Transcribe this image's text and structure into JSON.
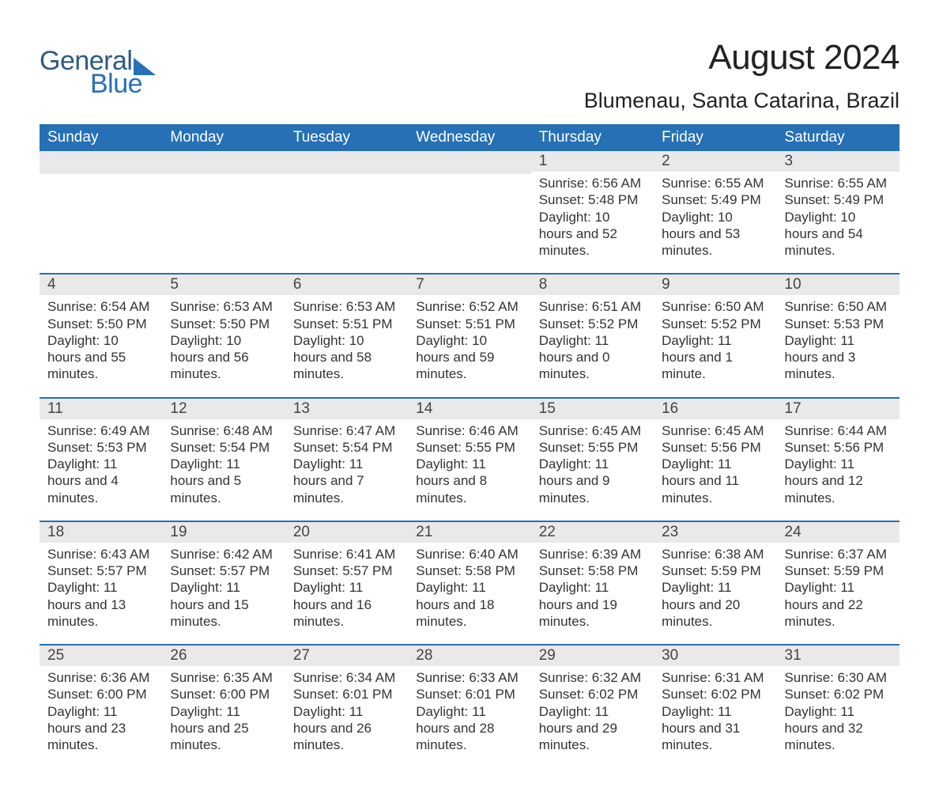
{
  "logo": {
    "text_general": "General",
    "text_blue": "Blue",
    "brand_color_dark": "#2e5a82",
    "brand_color_light": "#2670b6"
  },
  "title": "August 2024",
  "location": "Blumenau, Santa Catarina, Brazil",
  "colors": {
    "header_bg": "#2670b6",
    "header_text": "#ffffff",
    "daynum_bg": "#e9e9e9",
    "text": "#333333",
    "page_bg": "#ffffff",
    "divider": "#2670b6"
  },
  "fonts": {
    "title_size_pt": 33,
    "subtitle_size_pt": 20,
    "header_size_pt": 14,
    "body_size_pt": 13
  },
  "day_names": [
    "Sunday",
    "Monday",
    "Tuesday",
    "Wednesday",
    "Thursday",
    "Friday",
    "Saturday"
  ],
  "labels": {
    "sunrise": "Sunrise",
    "sunset": "Sunset",
    "daylight": "Daylight"
  },
  "weeks": [
    [
      null,
      null,
      null,
      null,
      {
        "day": "1",
        "sunrise": "6:56 AM",
        "sunset": "5:48 PM",
        "daylight": "10 hours and 52 minutes."
      },
      {
        "day": "2",
        "sunrise": "6:55 AM",
        "sunset": "5:49 PM",
        "daylight": "10 hours and 53 minutes."
      },
      {
        "day": "3",
        "sunrise": "6:55 AM",
        "sunset": "5:49 PM",
        "daylight": "10 hours and 54 minutes."
      }
    ],
    [
      {
        "day": "4",
        "sunrise": "6:54 AM",
        "sunset": "5:50 PM",
        "daylight": "10 hours and 55 minutes."
      },
      {
        "day": "5",
        "sunrise": "6:53 AM",
        "sunset": "5:50 PM",
        "daylight": "10 hours and 56 minutes."
      },
      {
        "day": "6",
        "sunrise": "6:53 AM",
        "sunset": "5:51 PM",
        "daylight": "10 hours and 58 minutes."
      },
      {
        "day": "7",
        "sunrise": "6:52 AM",
        "sunset": "5:51 PM",
        "daylight": "10 hours and 59 minutes."
      },
      {
        "day": "8",
        "sunrise": "6:51 AM",
        "sunset": "5:52 PM",
        "daylight": "11 hours and 0 minutes."
      },
      {
        "day": "9",
        "sunrise": "6:50 AM",
        "sunset": "5:52 PM",
        "daylight": "11 hours and 1 minute."
      },
      {
        "day": "10",
        "sunrise": "6:50 AM",
        "sunset": "5:53 PM",
        "daylight": "11 hours and 3 minutes."
      }
    ],
    [
      {
        "day": "11",
        "sunrise": "6:49 AM",
        "sunset": "5:53 PM",
        "daylight": "11 hours and 4 minutes."
      },
      {
        "day": "12",
        "sunrise": "6:48 AM",
        "sunset": "5:54 PM",
        "daylight": "11 hours and 5 minutes."
      },
      {
        "day": "13",
        "sunrise": "6:47 AM",
        "sunset": "5:54 PM",
        "daylight": "11 hours and 7 minutes."
      },
      {
        "day": "14",
        "sunrise": "6:46 AM",
        "sunset": "5:55 PM",
        "daylight": "11 hours and 8 minutes."
      },
      {
        "day": "15",
        "sunrise": "6:45 AM",
        "sunset": "5:55 PM",
        "daylight": "11 hours and 9 minutes."
      },
      {
        "day": "16",
        "sunrise": "6:45 AM",
        "sunset": "5:56 PM",
        "daylight": "11 hours and 11 minutes."
      },
      {
        "day": "17",
        "sunrise": "6:44 AM",
        "sunset": "5:56 PM",
        "daylight": "11 hours and 12 minutes."
      }
    ],
    [
      {
        "day": "18",
        "sunrise": "6:43 AM",
        "sunset": "5:57 PM",
        "daylight": "11 hours and 13 minutes."
      },
      {
        "day": "19",
        "sunrise": "6:42 AM",
        "sunset": "5:57 PM",
        "daylight": "11 hours and 15 minutes."
      },
      {
        "day": "20",
        "sunrise": "6:41 AM",
        "sunset": "5:57 PM",
        "daylight": "11 hours and 16 minutes."
      },
      {
        "day": "21",
        "sunrise": "6:40 AM",
        "sunset": "5:58 PM",
        "daylight": "11 hours and 18 minutes."
      },
      {
        "day": "22",
        "sunrise": "6:39 AM",
        "sunset": "5:58 PM",
        "daylight": "11 hours and 19 minutes."
      },
      {
        "day": "23",
        "sunrise": "6:38 AM",
        "sunset": "5:59 PM",
        "daylight": "11 hours and 20 minutes."
      },
      {
        "day": "24",
        "sunrise": "6:37 AM",
        "sunset": "5:59 PM",
        "daylight": "11 hours and 22 minutes."
      }
    ],
    [
      {
        "day": "25",
        "sunrise": "6:36 AM",
        "sunset": "6:00 PM",
        "daylight": "11 hours and 23 minutes."
      },
      {
        "day": "26",
        "sunrise": "6:35 AM",
        "sunset": "6:00 PM",
        "daylight": "11 hours and 25 minutes."
      },
      {
        "day": "27",
        "sunrise": "6:34 AM",
        "sunset": "6:01 PM",
        "daylight": "11 hours and 26 minutes."
      },
      {
        "day": "28",
        "sunrise": "6:33 AM",
        "sunset": "6:01 PM",
        "daylight": "11 hours and 28 minutes."
      },
      {
        "day": "29",
        "sunrise": "6:32 AM",
        "sunset": "6:02 PM",
        "daylight": "11 hours and 29 minutes."
      },
      {
        "day": "30",
        "sunrise": "6:31 AM",
        "sunset": "6:02 PM",
        "daylight": "11 hours and 31 minutes."
      },
      {
        "day": "31",
        "sunrise": "6:30 AM",
        "sunset": "6:02 PM",
        "daylight": "11 hours and 32 minutes."
      }
    ]
  ]
}
